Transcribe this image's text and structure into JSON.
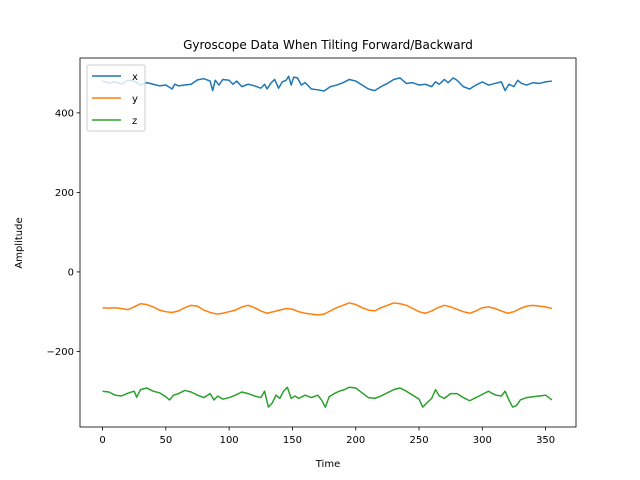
{
  "chart_data": {
    "type": "line",
    "title": "Gyroscope Data When Tilting Forward/Backward",
    "xlabel": "Time",
    "ylabel": "Amplitude",
    "xlim": [
      -17.8,
      374.0
    ],
    "ylim": [
      -390,
      538
    ],
    "xticks": [
      0,
      50,
      100,
      150,
      200,
      250,
      300,
      350
    ],
    "yticks": [
      -200,
      0,
      200,
      400
    ],
    "ytick_labels": [
      "−200",
      "0",
      "200",
      "400"
    ],
    "grid": false,
    "legend_position": "top-left",
    "series": [
      {
        "name": "x",
        "color": "#1f77b4",
        "points": [
          [
            0,
            480
          ],
          [
            5,
            475
          ],
          [
            10,
            478
          ],
          [
            15,
            472
          ],
          [
            20,
            482
          ],
          [
            25,
            480
          ],
          [
            30,
            470
          ],
          [
            35,
            476
          ],
          [
            40,
            472
          ],
          [
            45,
            468
          ],
          [
            50,
            470
          ],
          [
            55,
            460
          ],
          [
            57,
            472
          ],
          [
            60,
            468
          ],
          [
            65,
            470
          ],
          [
            70,
            472
          ],
          [
            75,
            483
          ],
          [
            80,
            486
          ],
          [
            85,
            480
          ],
          [
            87,
            456
          ],
          [
            89,
            482
          ],
          [
            92,
            470
          ],
          [
            95,
            484
          ],
          [
            100,
            482
          ],
          [
            103,
            472
          ],
          [
            106,
            480
          ],
          [
            110,
            466
          ],
          [
            115,
            472
          ],
          [
            120,
            468
          ],
          [
            125,
            462
          ],
          [
            128,
            472
          ],
          [
            130,
            460
          ],
          [
            133,
            475
          ],
          [
            136,
            484
          ],
          [
            139,
            462
          ],
          [
            142,
            478
          ],
          [
            145,
            482
          ],
          [
            147,
            492
          ],
          [
            149,
            470
          ],
          [
            151,
            490
          ],
          [
            154,
            488
          ],
          [
            157,
            470
          ],
          [
            160,
            476
          ],
          [
            165,
            460
          ],
          [
            170,
            458
          ],
          [
            175,
            455
          ],
          [
            180,
            466
          ],
          [
            185,
            470
          ],
          [
            190,
            476
          ],
          [
            195,
            484
          ],
          [
            200,
            480
          ],
          [
            205,
            470
          ],
          [
            210,
            460
          ],
          [
            215,
            456
          ],
          [
            220,
            466
          ],
          [
            225,
            474
          ],
          [
            230,
            484
          ],
          [
            235,
            488
          ],
          [
            240,
            474
          ],
          [
            245,
            476
          ],
          [
            250,
            470
          ],
          [
            255,
            472
          ],
          [
            260,
            466
          ],
          [
            263,
            478
          ],
          [
            266,
            472
          ],
          [
            270,
            484
          ],
          [
            273,
            476
          ],
          [
            277,
            488
          ],
          [
            280,
            482
          ],
          [
            285,
            466
          ],
          [
            290,
            460
          ],
          [
            295,
            470
          ],
          [
            300,
            478
          ],
          [
            305,
            470
          ],
          [
            310,
            474
          ],
          [
            315,
            478
          ],
          [
            318,
            456
          ],
          [
            321,
            472
          ],
          [
            325,
            466
          ],
          [
            328,
            482
          ],
          [
            331,
            474
          ],
          [
            335,
            470
          ],
          [
            340,
            476
          ],
          [
            345,
            474
          ],
          [
            350,
            478
          ],
          [
            355,
            480
          ]
        ]
      },
      {
        "name": "y",
        "color": "#ff7f0e",
        "points": [
          [
            0,
            -90
          ],
          [
            5,
            -91
          ],
          [
            10,
            -90
          ],
          [
            15,
            -92
          ],
          [
            20,
            -95
          ],
          [
            25,
            -88
          ],
          [
            30,
            -80
          ],
          [
            35,
            -82
          ],
          [
            40,
            -88
          ],
          [
            45,
            -96
          ],
          [
            50,
            -100
          ],
          [
            55,
            -102
          ],
          [
            60,
            -98
          ],
          [
            65,
            -90
          ],
          [
            70,
            -84
          ],
          [
            75,
            -86
          ],
          [
            80,
            -96
          ],
          [
            85,
            -102
          ],
          [
            90,
            -106
          ],
          [
            95,
            -104
          ],
          [
            100,
            -100
          ],
          [
            105,
            -96
          ],
          [
            110,
            -88
          ],
          [
            115,
            -84
          ],
          [
            120,
            -90
          ],
          [
            125,
            -98
          ],
          [
            130,
            -104
          ],
          [
            135,
            -100
          ],
          [
            140,
            -96
          ],
          [
            145,
            -92
          ],
          [
            150,
            -94
          ],
          [
            155,
            -100
          ],
          [
            160,
            -104
          ],
          [
            165,
            -106
          ],
          [
            170,
            -108
          ],
          [
            175,
            -106
          ],
          [
            180,
            -98
          ],
          [
            185,
            -90
          ],
          [
            190,
            -84
          ],
          [
            195,
            -78
          ],
          [
            200,
            -82
          ],
          [
            205,
            -90
          ],
          [
            210,
            -96
          ],
          [
            215,
            -98
          ],
          [
            220,
            -90
          ],
          [
            225,
            -84
          ],
          [
            230,
            -78
          ],
          [
            235,
            -80
          ],
          [
            240,
            -84
          ],
          [
            245,
            -92
          ],
          [
            250,
            -100
          ],
          [
            255,
            -104
          ],
          [
            260,
            -98
          ],
          [
            265,
            -90
          ],
          [
            270,
            -84
          ],
          [
            275,
            -88
          ],
          [
            280,
            -94
          ],
          [
            285,
            -100
          ],
          [
            290,
            -104
          ],
          [
            295,
            -98
          ],
          [
            300,
            -90
          ],
          [
            305,
            -88
          ],
          [
            310,
            -92
          ],
          [
            315,
            -98
          ],
          [
            320,
            -104
          ],
          [
            325,
            -100
          ],
          [
            330,
            -92
          ],
          [
            335,
            -86
          ],
          [
            340,
            -84
          ],
          [
            345,
            -86
          ],
          [
            350,
            -88
          ],
          [
            355,
            -92
          ]
        ]
      },
      {
        "name": "z",
        "color": "#2ca02c",
        "points": [
          [
            0,
            -300
          ],
          [
            5,
            -302
          ],
          [
            10,
            -310
          ],
          [
            15,
            -312
          ],
          [
            20,
            -305
          ],
          [
            25,
            -300
          ],
          [
            27,
            -315
          ],
          [
            30,
            -296
          ],
          [
            35,
            -292
          ],
          [
            40,
            -300
          ],
          [
            45,
            -304
          ],
          [
            50,
            -314
          ],
          [
            53,
            -322
          ],
          [
            56,
            -310
          ],
          [
            60,
            -306
          ],
          [
            65,
            -298
          ],
          [
            70,
            -302
          ],
          [
            75,
            -310
          ],
          [
            80,
            -316
          ],
          [
            85,
            -306
          ],
          [
            88,
            -322
          ],
          [
            91,
            -312
          ],
          [
            95,
            -320
          ],
          [
            100,
            -316
          ],
          [
            105,
            -310
          ],
          [
            110,
            -302
          ],
          [
            115,
            -306
          ],
          [
            120,
            -312
          ],
          [
            125,
            -316
          ],
          [
            128,
            -300
          ],
          [
            131,
            -340
          ],
          [
            134,
            -330
          ],
          [
            137,
            -310
          ],
          [
            140,
            -318
          ],
          [
            143,
            -300
          ],
          [
            146,
            -290
          ],
          [
            149,
            -318
          ],
          [
            152,
            -312
          ],
          [
            155,
            -318
          ],
          [
            160,
            -310
          ],
          [
            165,
            -316
          ],
          [
            170,
            -310
          ],
          [
            173,
            -322
          ],
          [
            176,
            -340
          ],
          [
            179,
            -314
          ],
          [
            183,
            -306
          ],
          [
            187,
            -300
          ],
          [
            191,
            -296
          ],
          [
            195,
            -290
          ],
          [
            200,
            -292
          ],
          [
            205,
            -304
          ],
          [
            210,
            -316
          ],
          [
            215,
            -318
          ],
          [
            220,
            -312
          ],
          [
            225,
            -304
          ],
          [
            230,
            -296
          ],
          [
            235,
            -292
          ],
          [
            240,
            -300
          ],
          [
            245,
            -310
          ],
          [
            250,
            -320
          ],
          [
            253,
            -340
          ],
          [
            256,
            -330
          ],
          [
            260,
            -318
          ],
          [
            263,
            -296
          ],
          [
            266,
            -312
          ],
          [
            270,
            -318
          ],
          [
            275,
            -306
          ],
          [
            280,
            -306
          ],
          [
            285,
            -316
          ],
          [
            290,
            -324
          ],
          [
            295,
            -316
          ],
          [
            300,
            -308
          ],
          [
            305,
            -300
          ],
          [
            308,
            -306
          ],
          [
            311,
            -310
          ],
          [
            315,
            -312
          ],
          [
            318,
            -300
          ],
          [
            321,
            -322
          ],
          [
            324,
            -340
          ],
          [
            327,
            -336
          ],
          [
            330,
            -322
          ],
          [
            335,
            -316
          ],
          [
            340,
            -314
          ],
          [
            345,
            -312
          ],
          [
            350,
            -310
          ],
          [
            355,
            -322
          ]
        ]
      }
    ]
  }
}
